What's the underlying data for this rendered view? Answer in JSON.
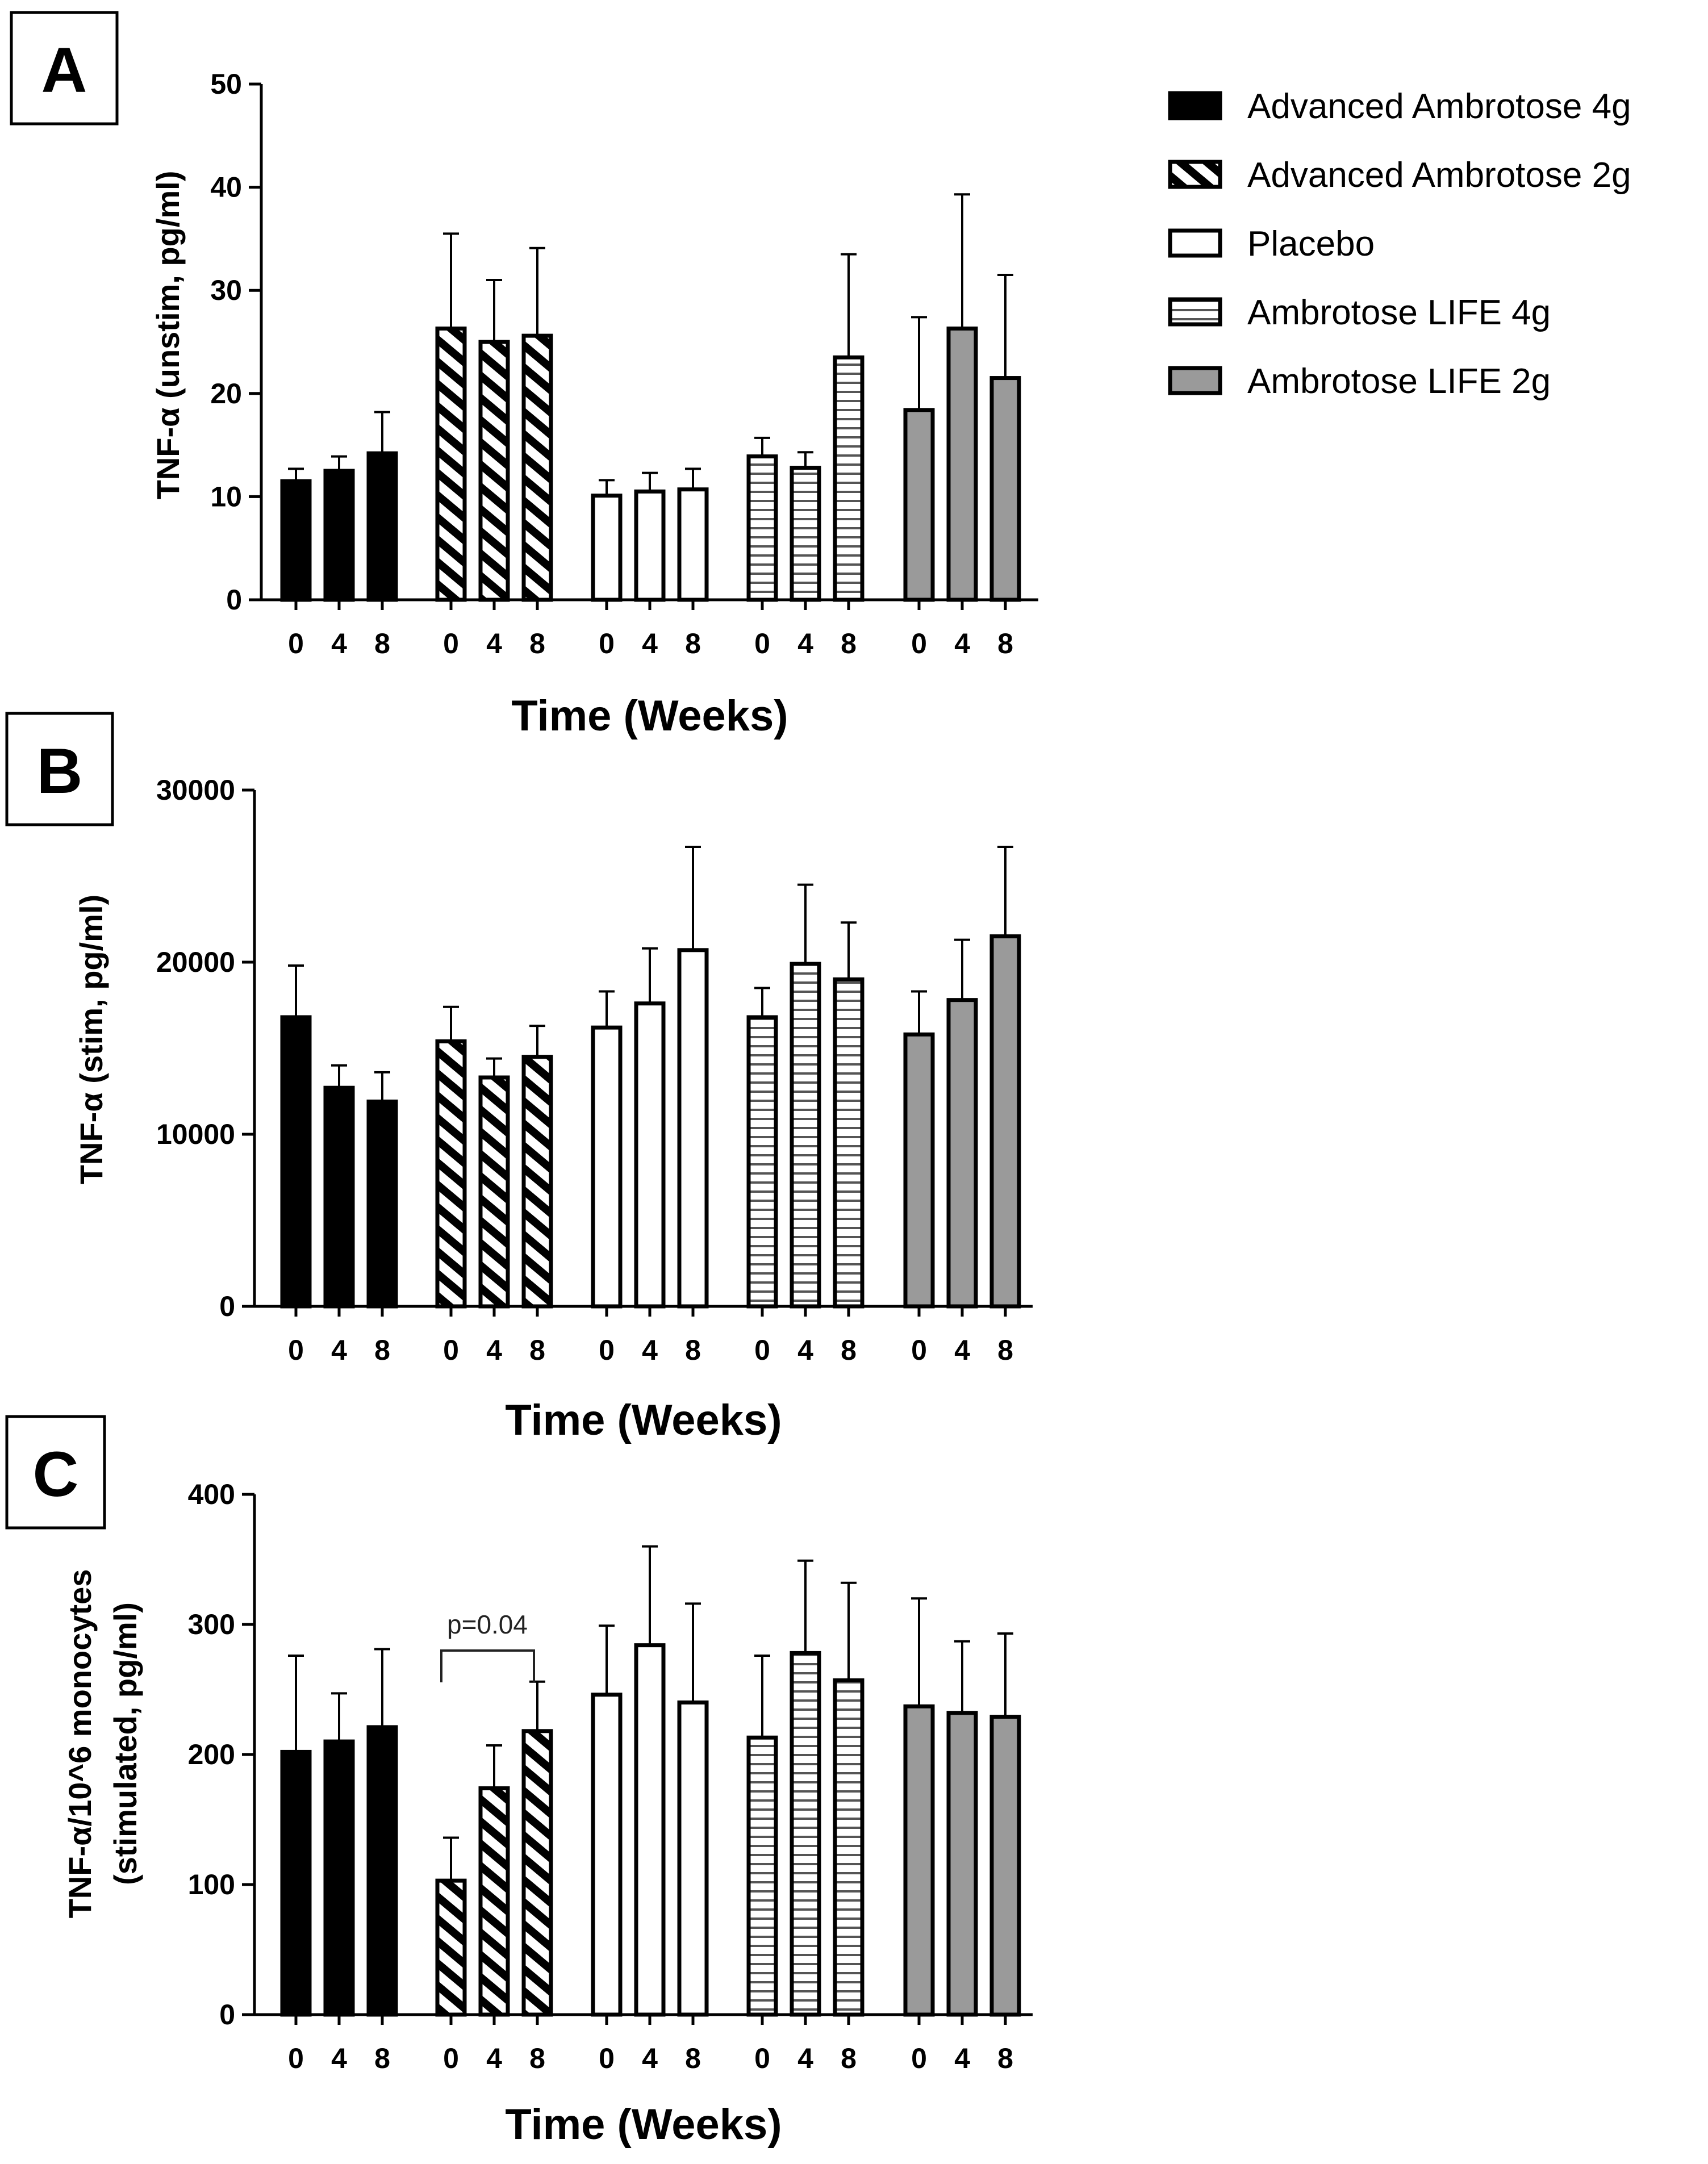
{
  "figure": {
    "legend": [
      {
        "label": "Advanced Ambrotose 4g",
        "pattern": "solid"
      },
      {
        "label": "Advanced Ambrotose 2g",
        "pattern": "diag"
      },
      {
        "label": "Placebo",
        "pattern": "open"
      },
      {
        "label": "Ambrotose LIFE 4g",
        "pattern": "horiz"
      },
      {
        "label": "Ambrotose LIFE 2g",
        "pattern": "gray"
      }
    ],
    "colors": {
      "black": "#000000",
      "gray": "#9a9a9a",
      "white": "#ffffff"
    }
  },
  "chart_data": [
    {
      "panel": "A",
      "type": "bar",
      "title": "",
      "xlabel": "Time (Weeks)",
      "ylabel": "TNF-α (unstim, pg/ml)",
      "ylim": [
        0,
        50
      ],
      "yticks": [
        0,
        10,
        20,
        30,
        40,
        50
      ],
      "categories": [
        "0",
        "4",
        "8"
      ],
      "series": [
        {
          "name": "Advanced Ambrotose 4g",
          "values": [
            11.5,
            12.5,
            14.2
          ],
          "errors": [
            1.2,
            1.4,
            4.0
          ]
        },
        {
          "name": "Advanced Ambrotose 2g",
          "values": [
            26.3,
            25.0,
            25.6
          ],
          "errors": [
            9.2,
            6.0,
            8.5
          ]
        },
        {
          "name": "Placebo",
          "values": [
            10.1,
            10.5,
            10.7
          ],
          "errors": [
            1.5,
            1.8,
            2.0
          ]
        },
        {
          "name": "Ambrotose LIFE 4g",
          "values": [
            13.9,
            12.8,
            23.5
          ],
          "errors": [
            1.8,
            1.5,
            10.0
          ]
        },
        {
          "name": "Ambrotose LIFE 2g",
          "values": [
            18.4,
            26.3,
            21.5
          ],
          "errors": [
            9.0,
            13.0,
            10.0
          ]
        }
      ]
    },
    {
      "panel": "B",
      "type": "bar",
      "title": "",
      "xlabel": "Time (Weeks)",
      "ylabel": "TNF-α (stim, pg/ml)",
      "ylim": [
        0,
        30000
      ],
      "yticks": [
        0,
        10000,
        20000,
        30000
      ],
      "categories": [
        "0",
        "4",
        "8"
      ],
      "series": [
        {
          "name": "Advanced Ambrotose 4g",
          "values": [
            16800,
            12700,
            11900
          ],
          "errors": [
            3000,
            1300,
            1700
          ]
        },
        {
          "name": "Advanced Ambrotose 2g",
          "values": [
            15400,
            13300,
            14500
          ],
          "errors": [
            2000,
            1100,
            1800
          ]
        },
        {
          "name": "Placebo",
          "values": [
            16200,
            17600,
            20700
          ],
          "errors": [
            2100,
            3200,
            6000
          ]
        },
        {
          "name": "Ambrotose LIFE 4g",
          "values": [
            16800,
            19900,
            19000
          ],
          "errors": [
            1700,
            4600,
            3300
          ]
        },
        {
          "name": "Ambrotose LIFE 2g",
          "values": [
            15800,
            17800,
            21500
          ],
          "errors": [
            2500,
            3500,
            5200
          ]
        }
      ]
    },
    {
      "panel": "C",
      "type": "bar",
      "title": "",
      "xlabel": "Time (Weeks)",
      "ylabel_lines": [
        "TNF-α/10^6 monocytes",
        "(stimulated, pg/ml)"
      ],
      "ylim": [
        0,
        400
      ],
      "yticks": [
        0,
        100,
        200,
        300,
        400
      ],
      "categories": [
        "0",
        "4",
        "8"
      ],
      "series": [
        {
          "name": "Advanced Ambrotose 4g",
          "values": [
            202,
            210,
            221
          ],
          "errors": [
            74,
            37,
            60
          ]
        },
        {
          "name": "Advanced Ambrotose 2g",
          "values": [
            103,
            174,
            218
          ],
          "errors": [
            33,
            33,
            38
          ]
        },
        {
          "name": "Placebo",
          "values": [
            246,
            284,
            240
          ],
          "errors": [
            53,
            76,
            76
          ]
        },
        {
          "name": "Ambrotose LIFE 4g",
          "values": [
            213,
            278,
            257
          ],
          "errors": [
            63,
            71,
            75
          ]
        },
        {
          "name": "Ambrotose LIFE 2g",
          "values": [
            237,
            232,
            229
          ],
          "errors": [
            83,
            55,
            64
          ]
        }
      ],
      "annotation": {
        "text": "p=0.04",
        "series": "Advanced Ambrotose 2g",
        "from_category": "0",
        "to_category": "8"
      }
    }
  ]
}
